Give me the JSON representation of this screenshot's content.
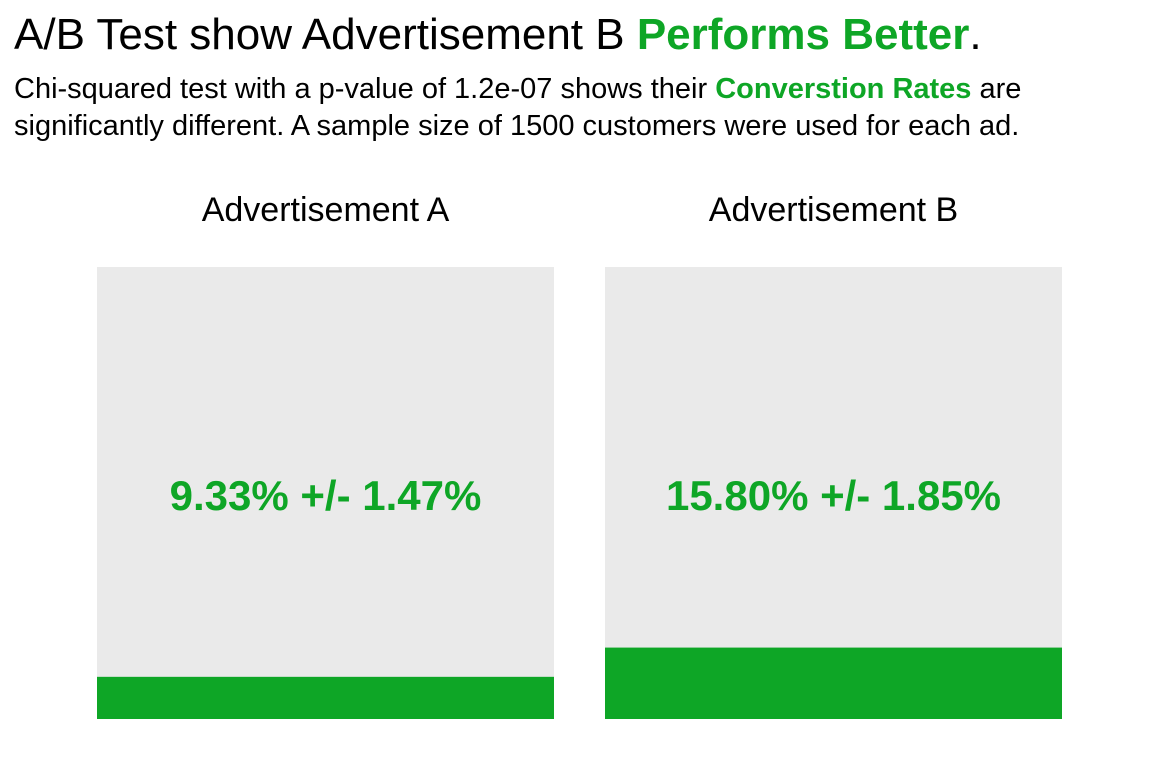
{
  "colors": {
    "accent": "#0ea626",
    "panel_background": "#eaeaea",
    "text": "#000000"
  },
  "header": {
    "title_prefix": "A/B Test show Advertisement B",
    "title_highlight": "Performs Better",
    "title_suffix": ".",
    "subtitle_line1_prefix": "Chi-squared test with a p-value of 1.2e-07 shows their",
    "subtitle_line1_highlight": "Converstion Rates",
    "subtitle_line1_suffix": "are",
    "subtitle_line2": "significantly different. A sample size of 1500 customers were used for each ad."
  },
  "chart_data": {
    "type": "bar",
    "categories": [
      "Advertisement A",
      "Advertisement B"
    ],
    "values": [
      9.33,
      15.8
    ],
    "errors": [
      1.47,
      1.85
    ],
    "value_labels": [
      "9.33% +/- 1.47%",
      "15.80% +/- 1.85%"
    ],
    "ylim": [
      0,
      100
    ],
    "grid": false,
    "legend": "none"
  }
}
